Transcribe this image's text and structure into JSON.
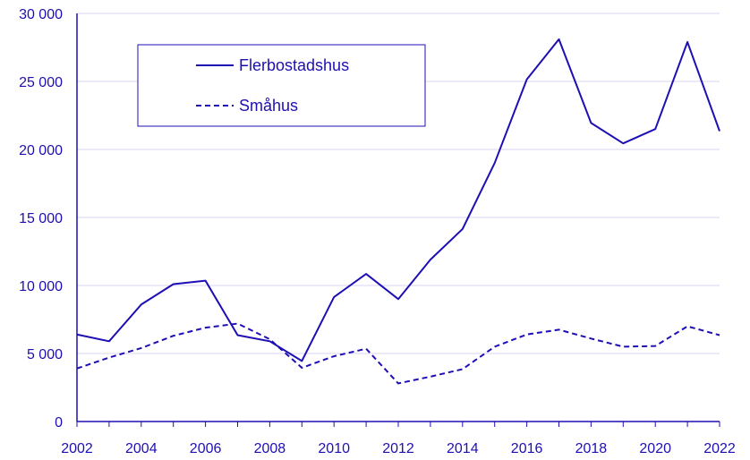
{
  "colors": {
    "series": "#1e0fb4",
    "grid": "#d8d6f0",
    "axis": "#1e0fb4",
    "text": "#1e0fb4"
  },
  "chart_data": {
    "type": "line",
    "x": [
      2002,
      2003,
      2004,
      2005,
      2006,
      2007,
      2008,
      2009,
      2010,
      2011,
      2012,
      2013,
      2014,
      2015,
      2016,
      2017,
      2018,
      2019,
      2020,
      2021,
      2022
    ],
    "series": [
      {
        "name": "Flerbostadshus",
        "style": "solid",
        "values": [
          6400,
          5900,
          8600,
          10100,
          10350,
          6350,
          5900,
          4450,
          9150,
          10850,
          9000,
          11900,
          14150,
          19000,
          25150,
          28100,
          21950,
          20450,
          21500,
          27900,
          21350
        ]
      },
      {
        "name": "Småhus",
        "style": "dashed",
        "values": [
          3900,
          4700,
          5400,
          6300,
          6900,
          7200,
          6050,
          3950,
          4800,
          5350,
          2800,
          3300,
          3850,
          5500,
          6400,
          6750,
          6100,
          5500,
          5550,
          7000,
          6350
        ]
      }
    ],
    "xticks": [
      "2002",
      "2004",
      "2006",
      "2008",
      "2010",
      "2012",
      "2014",
      "2016",
      "2018",
      "2020",
      "2022"
    ],
    "yticks": [
      "0",
      "5 000",
      "10 000",
      "15 000",
      "20 000",
      "25 000",
      "30 000"
    ],
    "ylim": [
      0,
      30000
    ],
    "xlim": [
      2002,
      2022
    ],
    "grid": "horizontal",
    "legend_position": "top-left"
  }
}
